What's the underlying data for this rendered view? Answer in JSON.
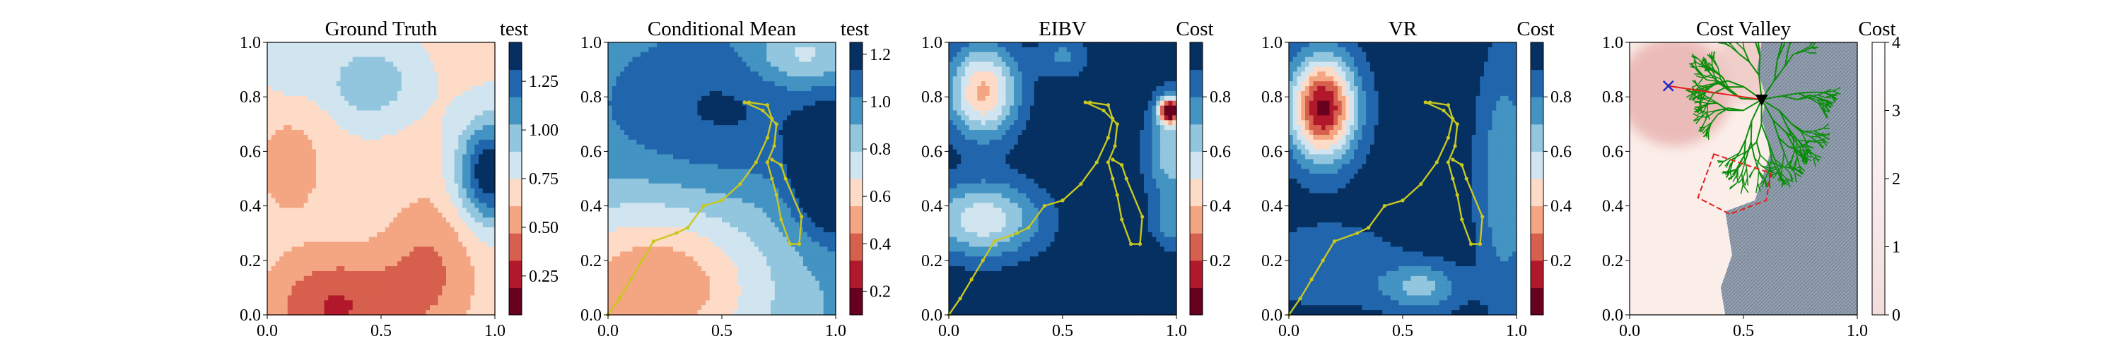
{
  "chart_data": [
    {
      "type": "heatmap",
      "title": "Ground Truth",
      "colorbar_label": "test",
      "xlim": [
        0,
        1
      ],
      "ylim": [
        0,
        1
      ],
      "x_ticks": [
        "0.0",
        "0.5",
        "1.0"
      ],
      "y_ticks": [
        "0.0",
        "0.2",
        "0.4",
        "0.6",
        "0.8",
        "1.0"
      ],
      "colorbar_ticks": [
        "0.25",
        "0.50",
        "0.75",
        "1.00",
        "1.25"
      ],
      "colorbar_range": [
        0.05,
        1.45
      ],
      "colorbar_levels": 10
    },
    {
      "type": "heatmap",
      "title": "Conditional Mean",
      "colorbar_label": "test",
      "xlim": [
        0,
        1
      ],
      "ylim": [
        0,
        1
      ],
      "x_ticks": [
        "0.0",
        "0.5",
        "1.0"
      ],
      "y_ticks": [
        "0.0",
        "0.2",
        "0.4",
        "0.6",
        "0.8",
        "1.0"
      ],
      "colorbar_ticks": [
        "0.2",
        "0.4",
        "0.6",
        "0.8",
        "1.0",
        "1.2"
      ],
      "colorbar_range": [
        0.1,
        1.25
      ],
      "colorbar_levels": 10,
      "path": [
        [
          0,
          0
        ],
        [
          0.05,
          0.06
        ],
        [
          0.1,
          0.13
        ],
        [
          0.15,
          0.2
        ],
        [
          0.2,
          0.27
        ],
        [
          0.3,
          0.3
        ],
        [
          0.35,
          0.32
        ],
        [
          0.42,
          0.4
        ],
        [
          0.5,
          0.42
        ],
        [
          0.58,
          0.48
        ],
        [
          0.65,
          0.56
        ],
        [
          0.7,
          0.65
        ],
        [
          0.72,
          0.72
        ],
        [
          0.7,
          0.77
        ],
        [
          0.62,
          0.78
        ],
        [
          0.6,
          0.78
        ],
        [
          0.68,
          0.75
        ],
        [
          0.74,
          0.7
        ],
        [
          0.73,
          0.62
        ],
        [
          0.7,
          0.56
        ],
        [
          0.72,
          0.5
        ],
        [
          0.74,
          0.44
        ],
        [
          0.76,
          0.35
        ],
        [
          0.8,
          0.26
        ],
        [
          0.84,
          0.26
        ],
        [
          0.85,
          0.36
        ],
        [
          0.78,
          0.5
        ],
        [
          0.76,
          0.55
        ],
        [
          0.72,
          0.57
        ]
      ]
    },
    {
      "type": "heatmap",
      "title": "EIBV",
      "colorbar_label": "Cost",
      "xlim": [
        0,
        1
      ],
      "ylim": [
        0,
        1
      ],
      "x_ticks": [
        "0.0",
        "0.5",
        "1.0"
      ],
      "y_ticks": [
        "0.0",
        "0.2",
        "0.4",
        "0.6",
        "0.8",
        "1.0"
      ],
      "colorbar_ticks": [
        "0.2",
        "0.4",
        "0.6",
        "0.8"
      ],
      "colorbar_range": [
        0,
        1
      ],
      "colorbar_levels": 10,
      "path": [
        [
          0,
          0
        ],
        [
          0.05,
          0.06
        ],
        [
          0.1,
          0.13
        ],
        [
          0.15,
          0.2
        ],
        [
          0.2,
          0.27
        ],
        [
          0.3,
          0.3
        ],
        [
          0.35,
          0.32
        ],
        [
          0.42,
          0.4
        ],
        [
          0.5,
          0.42
        ],
        [
          0.58,
          0.48
        ],
        [
          0.65,
          0.56
        ],
        [
          0.7,
          0.65
        ],
        [
          0.72,
          0.72
        ],
        [
          0.7,
          0.77
        ],
        [
          0.62,
          0.78
        ],
        [
          0.6,
          0.78
        ],
        [
          0.68,
          0.75
        ],
        [
          0.74,
          0.7
        ],
        [
          0.73,
          0.62
        ],
        [
          0.7,
          0.56
        ],
        [
          0.72,
          0.5
        ],
        [
          0.74,
          0.44
        ],
        [
          0.76,
          0.35
        ],
        [
          0.8,
          0.26
        ],
        [
          0.84,
          0.26
        ],
        [
          0.85,
          0.36
        ],
        [
          0.78,
          0.5
        ],
        [
          0.76,
          0.55
        ],
        [
          0.72,
          0.57
        ]
      ]
    },
    {
      "type": "heatmap",
      "title": "VR",
      "colorbar_label": "Cost",
      "xlim": [
        0,
        1
      ],
      "ylim": [
        0,
        1
      ],
      "x_ticks": [
        "0.0",
        "0.5",
        "1.0"
      ],
      "y_ticks": [
        "0.0",
        "0.2",
        "0.4",
        "0.6",
        "0.8",
        "1.0"
      ],
      "colorbar_ticks": [
        "0.2",
        "0.4",
        "0.6",
        "0.8"
      ],
      "colorbar_range": [
        0,
        1
      ],
      "colorbar_levels": 10,
      "path": [
        [
          0,
          0
        ],
        [
          0.05,
          0.06
        ],
        [
          0.1,
          0.13
        ],
        [
          0.15,
          0.2
        ],
        [
          0.2,
          0.27
        ],
        [
          0.3,
          0.3
        ],
        [
          0.35,
          0.32
        ],
        [
          0.42,
          0.4
        ],
        [
          0.5,
          0.42
        ],
        [
          0.58,
          0.48
        ],
        [
          0.65,
          0.56
        ],
        [
          0.7,
          0.65
        ],
        [
          0.72,
          0.72
        ],
        [
          0.7,
          0.77
        ],
        [
          0.62,
          0.78
        ],
        [
          0.6,
          0.78
        ],
        [
          0.68,
          0.75
        ],
        [
          0.74,
          0.7
        ],
        [
          0.73,
          0.62
        ],
        [
          0.7,
          0.56
        ],
        [
          0.72,
          0.5
        ],
        [
          0.74,
          0.44
        ],
        [
          0.76,
          0.35
        ],
        [
          0.8,
          0.26
        ],
        [
          0.84,
          0.26
        ],
        [
          0.85,
          0.36
        ],
        [
          0.78,
          0.5
        ],
        [
          0.76,
          0.55
        ],
        [
          0.72,
          0.57
        ]
      ]
    },
    {
      "type": "heatmap",
      "title": "Cost Valley",
      "colorbar_label": "Cost",
      "xlim": [
        0,
        1
      ],
      "ylim": [
        0,
        1
      ],
      "x_ticks": [
        "0.0",
        "0.5",
        "1.0"
      ],
      "y_ticks": [
        "0.0",
        "0.2",
        "0.4",
        "0.6",
        "0.8",
        "1.0"
      ],
      "colorbar_ticks": [
        "0",
        "1",
        "2",
        "3",
        "4"
      ],
      "colorbar_range": [
        0,
        4
      ],
      "current_location": [
        0.58,
        0.79
      ],
      "target_location": [
        0.17,
        0.84
      ],
      "boundary_polygon": [
        [
          0.37,
          0.59
        ],
        [
          0.62,
          0.52
        ],
        [
          0.6,
          0.42
        ],
        [
          0.44,
          0.37
        ],
        [
          0.3,
          0.43
        ]
      ]
    }
  ],
  "colors": {
    "rdbu_10": [
      "#67001f",
      "#b2182b",
      "#d6604d",
      "#f4a582",
      "#fddbc7",
      "#d1e5f0",
      "#92c5de",
      "#4393c3",
      "#2166ac",
      "#053061"
    ],
    "path": "#c8c81e",
    "tree": "#0a8c0a",
    "grey_hatch": "#8c96a6"
  }
}
